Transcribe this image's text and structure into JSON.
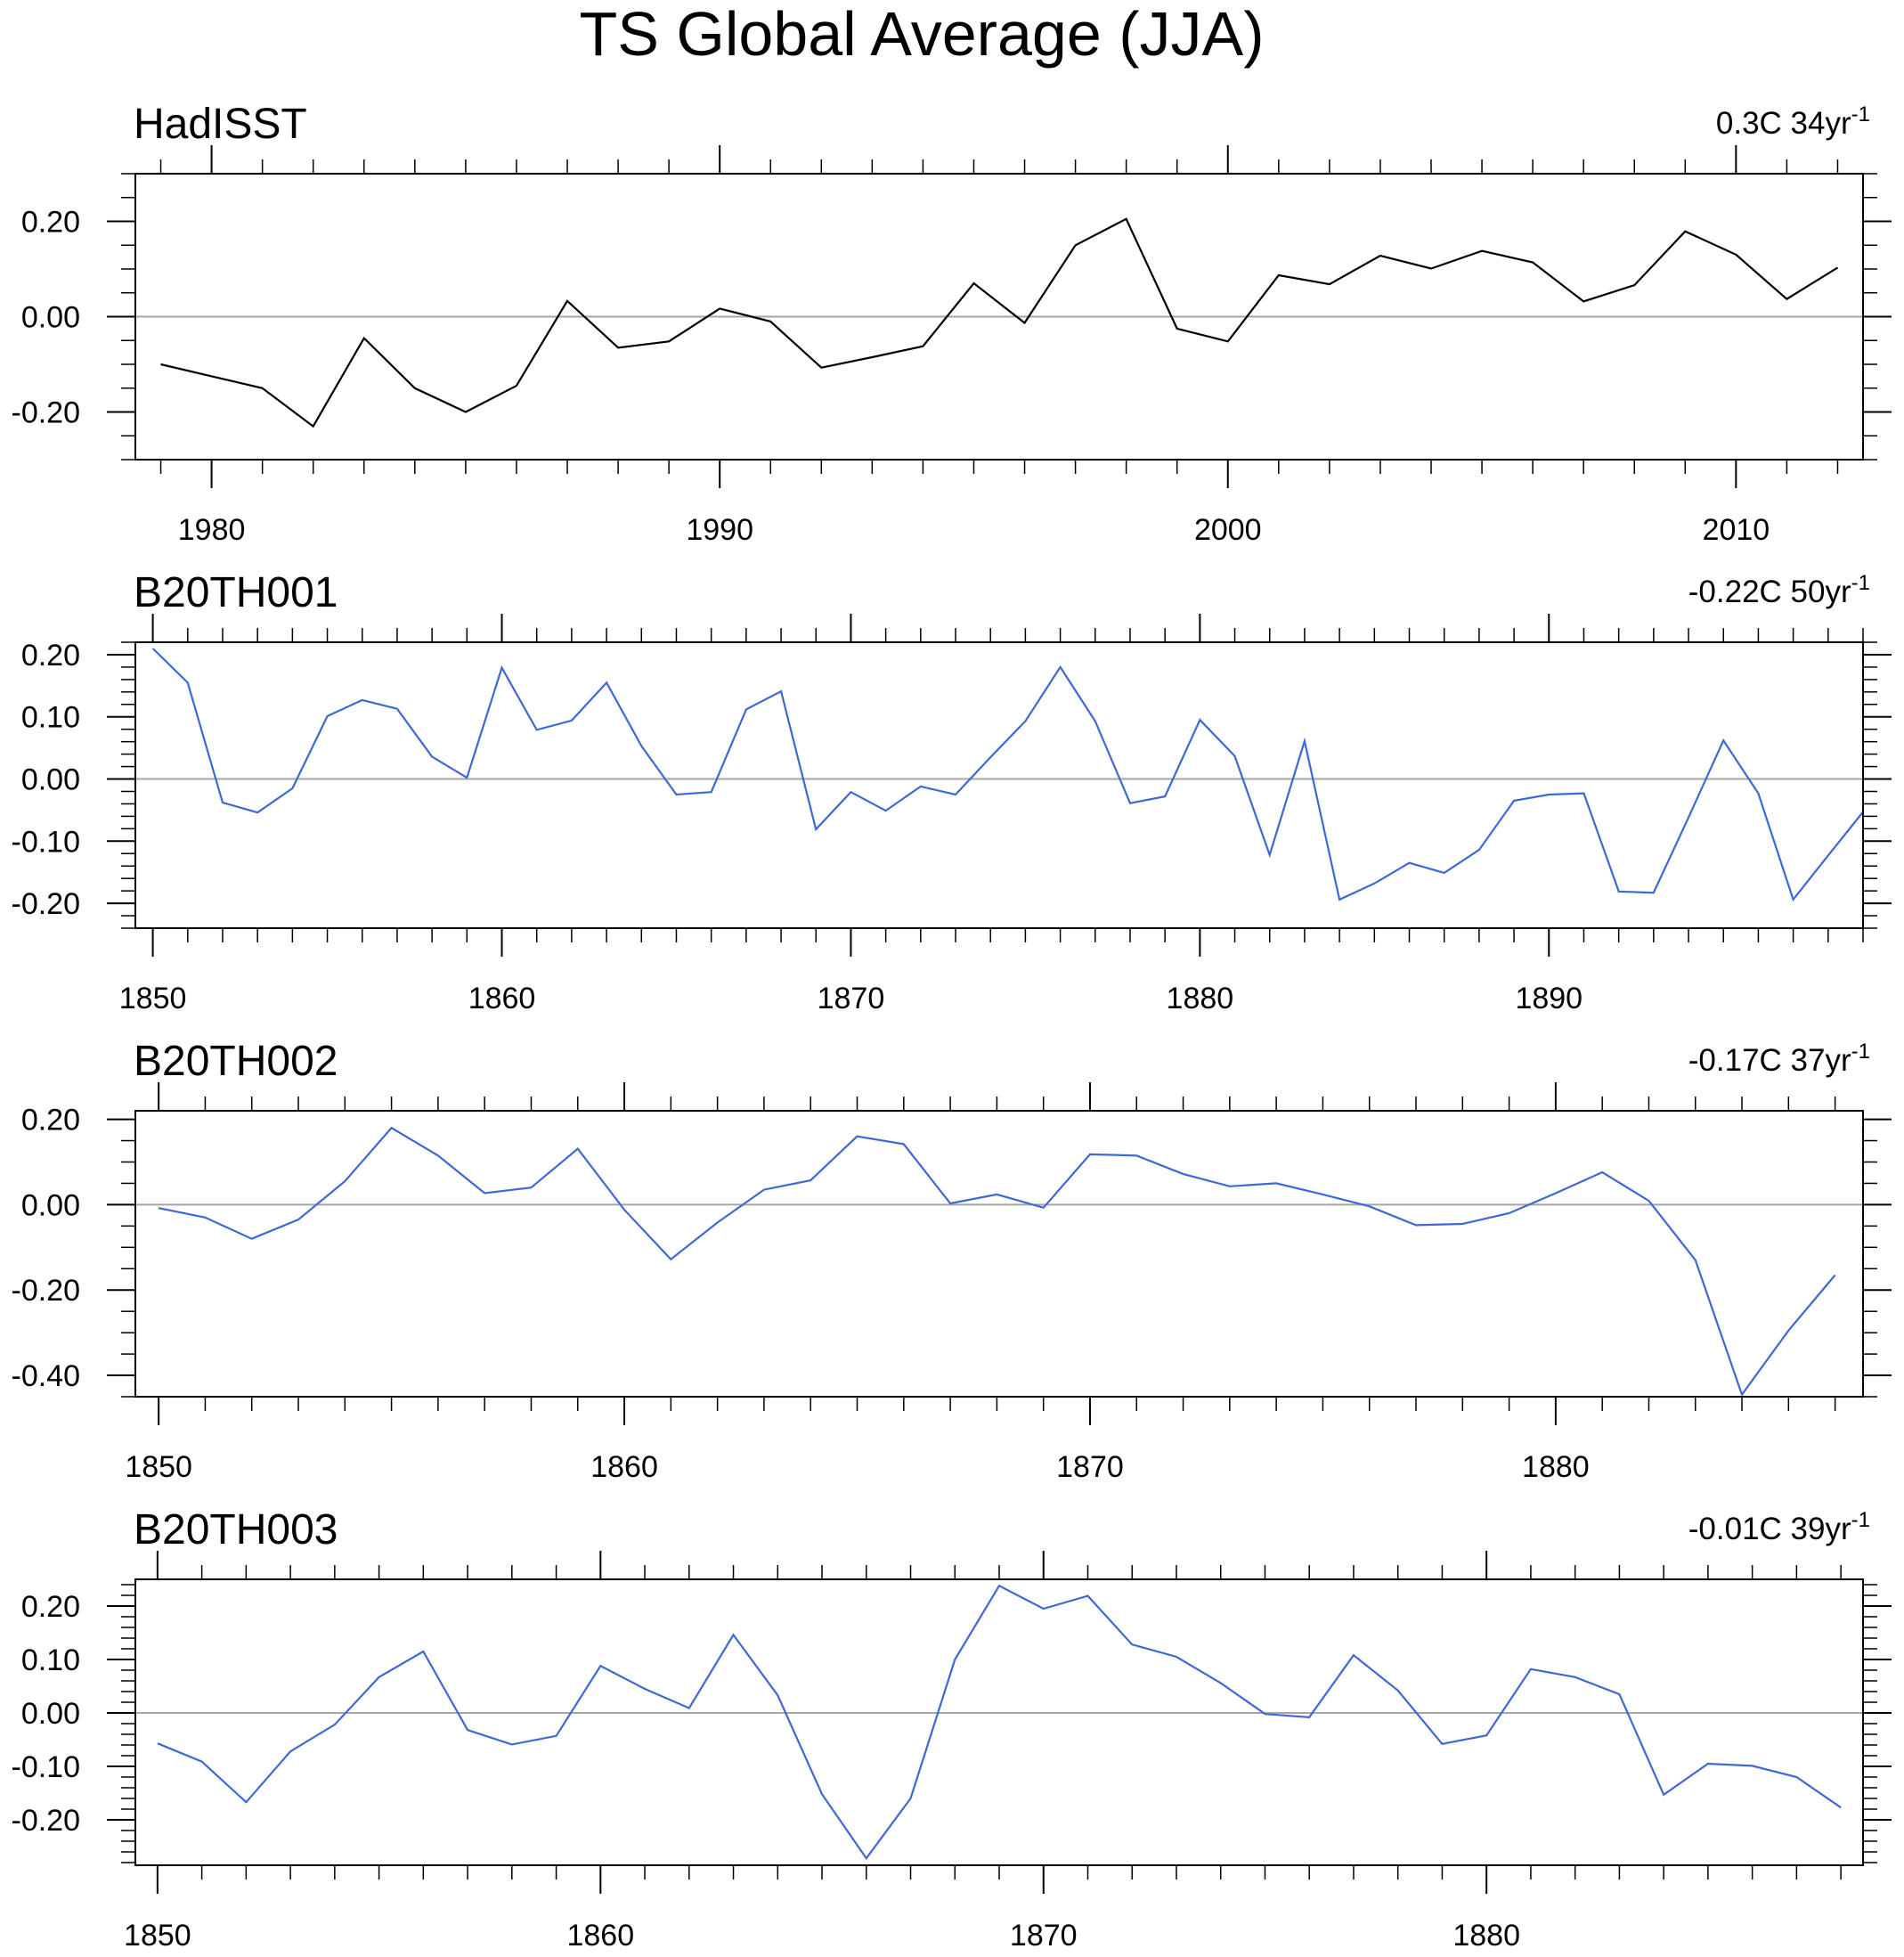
{
  "figure": {
    "title": "TS Global Average (JJA)"
  },
  "chart_data": [
    {
      "type": "line",
      "title": "HadISST",
      "trend_label": "0.3C 34yr",
      "trend_exp": "-1",
      "line_color": "#000000",
      "xlim": [
        1978.5,
        2012.5
      ],
      "ylim": [
        -0.3,
        0.3
      ],
      "xticks": [
        1980,
        1990,
        2000,
        2010
      ],
      "xtick_labels": [
        "1980",
        "1990",
        "2000",
        "2010"
      ],
      "xminor_step": 1,
      "yticks": [
        0.2,
        0.0,
        -0.2
      ],
      "ytick_labels": [
        "0.20",
        "0.00",
        "-0.20"
      ],
      "yminor_step": 0.05,
      "x": [
        1979,
        1980,
        1981,
        1982,
        1983,
        1984,
        1985,
        1986,
        1987,
        1988,
        1989,
        1990,
        1991,
        1992,
        1993,
        1994,
        1995,
        1996,
        1997,
        1998,
        1999,
        2000,
        2001,
        2002,
        2003,
        2004,
        2005,
        2006,
        2007,
        2008,
        2009,
        2010,
        2011,
        2012
      ],
      "y": [
        -0.1,
        -0.125,
        -0.15,
        -0.23,
        -0.045,
        -0.15,
        -0.2,
        -0.145,
        0.033,
        -0.065,
        -0.052,
        0.017,
        -0.01,
        -0.107,
        -0.085,
        -0.062,
        0.07,
        -0.013,
        0.15,
        0.205,
        -0.025,
        -0.052,
        0.087,
        0.068,
        0.128,
        0.101,
        0.138,
        0.114,
        0.032,
        0.066,
        0.179,
        0.13,
        0.037,
        0.103
      ]
    },
    {
      "type": "line",
      "title": "B20TH001",
      "trend_label": "-0.22C 50yr",
      "trend_exp": "-1",
      "line_color": "#3e68d4",
      "xlim": [
        1849.5,
        1899
      ],
      "ylim": [
        -0.24,
        0.22
      ],
      "xticks": [
        1850,
        1860,
        1870,
        1880,
        1890
      ],
      "xtick_labels": [
        "1850",
        "1860",
        "1870",
        "1880",
        "1890"
      ],
      "xminor_step": 1,
      "yticks": [
        0.2,
        0.1,
        0.0,
        -0.1,
        -0.2
      ],
      "ytick_labels": [
        "0.20",
        "0.10",
        "0.00",
        "-0.10",
        "-0.20"
      ],
      "yminor_step": 0.02,
      "x": [
        1850,
        1851,
        1852,
        1853,
        1854,
        1855,
        1856,
        1857,
        1858,
        1859,
        1860,
        1861,
        1862,
        1863,
        1864,
        1865,
        1866,
        1867,
        1868,
        1869,
        1870,
        1871,
        1872,
        1873,
        1874,
        1875,
        1876,
        1877,
        1878,
        1879,
        1880,
        1881,
        1882,
        1883,
        1884,
        1885,
        1886,
        1887,
        1888,
        1889,
        1890,
        1891,
        1892,
        1893,
        1894,
        1895,
        1896,
        1897,
        1898,
        1899
      ],
      "y": [
        0.21,
        0.155,
        -0.038,
        -0.054,
        -0.015,
        0.101,
        0.127,
        0.113,
        0.036,
        0.002,
        0.179,
        0.079,
        0.094,
        0.155,
        0.053,
        -0.025,
        -0.021,
        0.112,
        0.141,
        -0.081,
        -0.021,
        -0.051,
        -0.012,
        -0.025,
        0.035,
        0.093,
        0.18,
        0.093,
        -0.039,
        -0.028,
        0.095,
        0.037,
        -0.122,
        0.061,
        -0.194,
        -0.168,
        -0.135,
        -0.151,
        -0.114,
        -0.035,
        -0.025,
        -0.023,
        -0.181,
        -0.183,
        -0.062,
        0.062,
        -0.023,
        -0.194,
        -0.123,
        -0.053
      ]
    },
    {
      "type": "line",
      "title": "B20TH002",
      "trend_label": "-0.17C 37yr",
      "trend_exp": "-1",
      "line_color": "#3e68d4",
      "xlim": [
        1849.5,
        1886.6
      ],
      "ylim": [
        -0.45,
        0.22
      ],
      "xticks": [
        1850,
        1860,
        1870,
        1880
      ],
      "xtick_labels": [
        "1850",
        "1860",
        "1870",
        "1880"
      ],
      "xminor_step": 1,
      "yticks": [
        0.2,
        0.0,
        -0.2,
        -0.4
      ],
      "ytick_labels": [
        "0.20",
        "0.00",
        "-0.20",
        "-0.40"
      ],
      "yminor_step": 0.05,
      "x": [
        1850,
        1851,
        1852,
        1853,
        1854,
        1855,
        1856,
        1857,
        1858,
        1859,
        1860,
        1861,
        1862,
        1863,
        1864,
        1865,
        1866,
        1867,
        1868,
        1869,
        1870,
        1871,
        1872,
        1873,
        1874,
        1875,
        1876,
        1877,
        1878,
        1879,
        1880,
        1881,
        1882,
        1883,
        1884,
        1885,
        1886
      ],
      "y": [
        -0.008,
        -0.03,
        -0.08,
        -0.035,
        0.055,
        0.18,
        0.115,
        0.027,
        0.04,
        0.131,
        -0.012,
        -0.128,
        -0.042,
        0.035,
        0.057,
        0.16,
        0.142,
        0.003,
        0.024,
        -0.007,
        0.118,
        0.115,
        0.072,
        0.043,
        0.05,
        0.024,
        -0.004,
        -0.048,
        -0.045,
        -0.02,
        0.027,
        0.076,
        0.009,
        -0.13,
        -0.445,
        -0.295,
        -0.165
      ]
    },
    {
      "type": "line",
      "title": "B20TH003",
      "trend_label": "-0.01C 39yr",
      "trend_exp": "-1",
      "line_color": "#3e68d4",
      "xlim": [
        1849.5,
        1888.5
      ],
      "ylim": [
        -0.285,
        0.25
      ],
      "xticks": [
        1850,
        1860,
        1870,
        1880
      ],
      "xtick_labels": [
        "1850",
        "1860",
        "1870",
        "1880"
      ],
      "xminor_step": 1,
      "yticks": [
        0.2,
        0.1,
        0.0,
        -0.1,
        -0.2
      ],
      "ytick_labels": [
        "0.20",
        "0.10",
        "0.00",
        "-0.10",
        "-0.20"
      ],
      "yminor_step": 0.02,
      "x": [
        1850,
        1851,
        1852,
        1853,
        1854,
        1855,
        1856,
        1857,
        1858,
        1859,
        1860,
        1861,
        1862,
        1863,
        1864,
        1865,
        1866,
        1867,
        1868,
        1869,
        1870,
        1871,
        1872,
        1873,
        1874,
        1875,
        1876,
        1877,
        1878,
        1879,
        1880,
        1881,
        1882,
        1883,
        1884,
        1885,
        1886,
        1887,
        1888
      ],
      "y": [
        -0.057,
        -0.091,
        -0.167,
        -0.072,
        -0.022,
        0.067,
        0.115,
        -0.032,
        -0.059,
        -0.043,
        0.088,
        0.045,
        0.009,
        0.146,
        0.033,
        -0.152,
        -0.272,
        -0.16,
        0.1,
        0.238,
        0.195,
        0.219,
        0.128,
        0.105,
        0.056,
        -0.002,
        -0.008,
        0.108,
        0.042,
        -0.058,
        -0.042,
        0.082,
        0.067,
        0.035,
        -0.153,
        -0.095,
        -0.099,
        -0.12,
        -0.177
      ]
    }
  ]
}
